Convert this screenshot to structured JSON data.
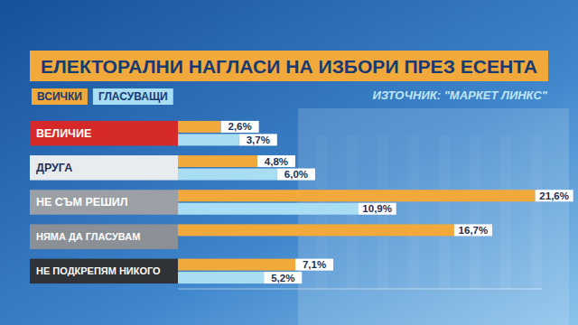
{
  "chart_data": {
    "type": "bar",
    "orientation": "horizontal",
    "title": "ЕЛЕКТОРАЛНИ НАГЛАСИ НА ИЗБОРИ ПРЕЗ ЕСЕНТА",
    "subtitle": "ИЗТОЧНИК: \"МАРКЕТ ЛИНКС\"",
    "categories": [
      "ВЕЛИЧИЕ",
      "ДРУГА",
      "НЕ СЪМ РЕШИЛ",
      "НЯМА ДА ГЛАСУВАМ",
      "НЕ ПОДКРЕПЯМ НИКОГО"
    ],
    "series": [
      {
        "name": "ВСИЧКИ",
        "color": "#f2a93b",
        "values": [
          2.6,
          4.8,
          21.6,
          16.7,
          7.1
        ],
        "value_labels": [
          "2,6%",
          "4,8%",
          "21,6%",
          "16,7%",
          "7,1%"
        ]
      },
      {
        "name": "ГЛАСУВАЩИ",
        "color": "#a9ddf3",
        "values": [
          3.7,
          6.0,
          10.9,
          null,
          5.2
        ],
        "value_labels": [
          "3,7%",
          "6,0%",
          "10,9%",
          null,
          "5,2%"
        ]
      }
    ],
    "xlim": [
      0,
      22
    ],
    "data_labels": true,
    "tick_labels": "y",
    "legend": "top-left"
  }
}
